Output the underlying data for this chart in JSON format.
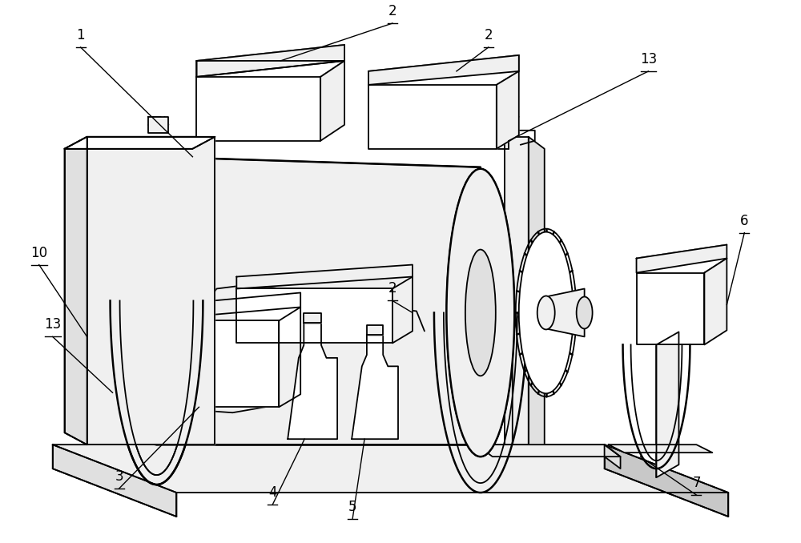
{
  "background_color": "#ffffff",
  "line_color": "#000000",
  "lw": 1.3,
  "lw_thick": 1.8,
  "lw_thin": 0.9,
  "label_fontsize": 12,
  "figsize": [
    10.0,
    6.78
  ],
  "dpi": 100,
  "white": "#ffffff",
  "light_gray": "#f0f0f0",
  "mid_gray": "#e0e0e0",
  "dark_gray": "#c8c8c8"
}
